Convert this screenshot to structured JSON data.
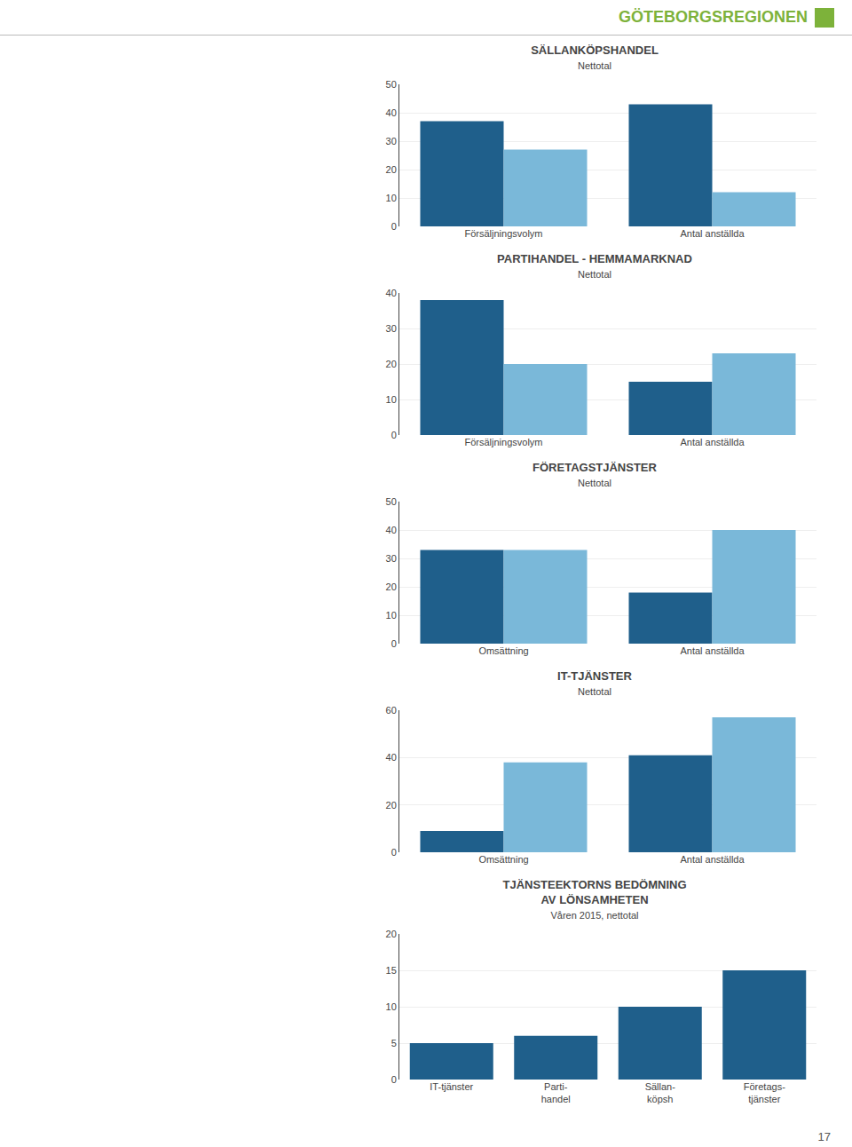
{
  "title": "GÖTEBORGSREGIONEN",
  "color": "#7db23a",
  "annotations": [
    "17"
  ],
  "chart_data": [
    {
      "type": "bar",
      "title": "SÄLLANKÖPSHANDEL",
      "subtitle": "Nettotal",
      "categories": [
        "Försäljningsvolym",
        "Antal anställda"
      ],
      "series": [
        {
          "color": "#1f5f8b",
          "values": [
            37,
            43
          ]
        },
        {
          "color": "#7ab8d9",
          "values": [
            27,
            12
          ]
        }
      ],
      "ylim": [
        0,
        50
      ],
      "yticks": [
        0,
        10,
        20,
        30,
        40,
        50
      ],
      "grid": true
    },
    {
      "type": "bar",
      "title": "PARTIHANDEL - HEMMAMARKNAD",
      "subtitle": "Nettotal",
      "categories": [
        "Försäljningsvolym",
        "Antal anställda"
      ],
      "series": [
        {
          "color": "#1f5f8b",
          "values": [
            38,
            15
          ]
        },
        {
          "color": "#7ab8d9",
          "values": [
            20,
            23
          ]
        }
      ],
      "ylim": [
        0,
        40
      ],
      "yticks": [
        0,
        10,
        20,
        30,
        40
      ],
      "grid": true
    },
    {
      "type": "bar",
      "title": "FÖRETAGSTJÄNSTER",
      "subtitle": "Nettotal",
      "categories": [
        "Omsättning",
        "Antal anställda"
      ],
      "series": [
        {
          "color": "#1f5f8b",
          "values": [
            33,
            18
          ]
        },
        {
          "color": "#7ab8d9",
          "values": [
            33,
            40
          ]
        }
      ],
      "ylim": [
        0,
        50
      ],
      "yticks": [
        0,
        10,
        20,
        30,
        40,
        50
      ],
      "grid": true
    },
    {
      "type": "bar",
      "title": "IT-TJÄNSTER",
      "subtitle": "Nettotal",
      "categories": [
        "Omsättning",
        "Antal anställda"
      ],
      "series": [
        {
          "color": "#1f5f8b",
          "values": [
            9,
            41
          ]
        },
        {
          "color": "#7ab8d9",
          "values": [
            38,
            57
          ]
        }
      ],
      "ylim": [
        0,
        60
      ],
      "yticks": [
        0,
        20,
        40,
        60
      ],
      "grid": true
    },
    {
      "type": "bar",
      "title": "TJÄNSTEEKTORNS BEDÖMNING\nAV LÖNSAMHETEN",
      "subtitle": "Våren 2015, nettotal",
      "categories": [
        "IT-tjänster",
        "Parti-\nhandel",
        "Sällan-\nköpsh",
        "Företags-\ntjänster"
      ],
      "values": [
        5,
        6,
        10,
        15
      ],
      "color": "#1f5f8b",
      "ylim": [
        0,
        20
      ],
      "yticks": [
        0,
        5,
        10,
        15,
        20
      ],
      "grid": true
    }
  ]
}
